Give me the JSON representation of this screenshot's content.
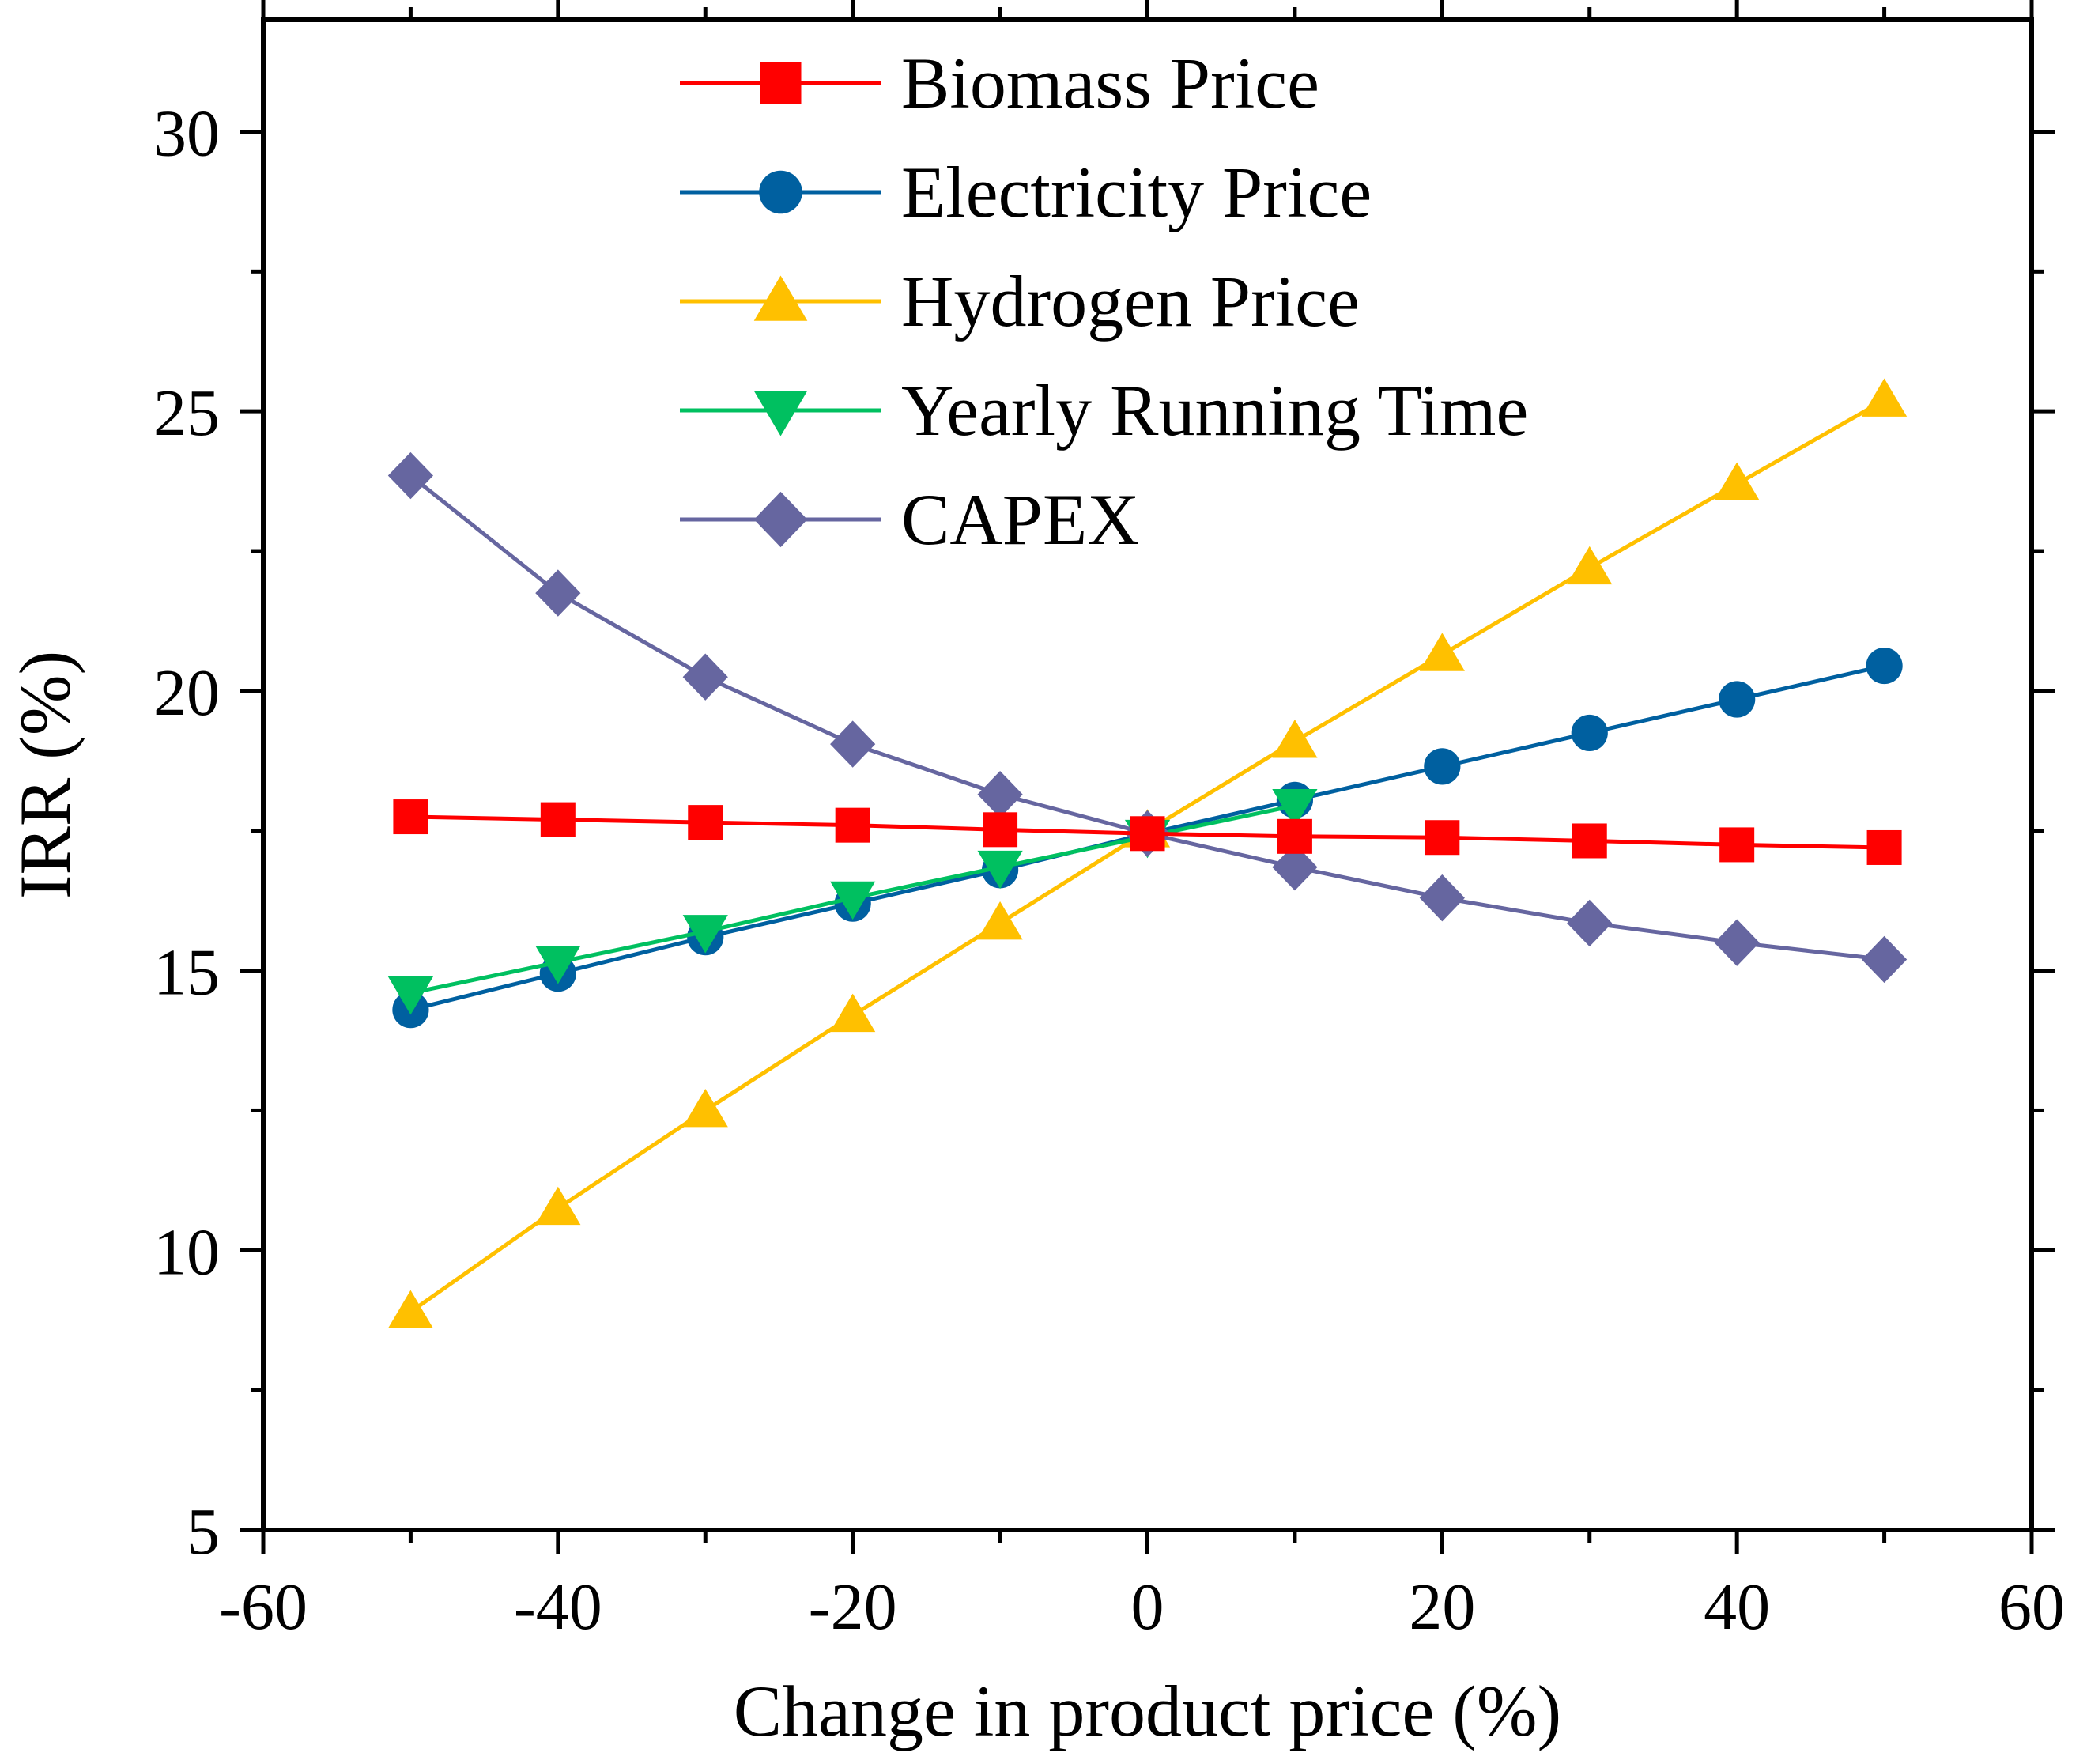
{
  "chart_data": {
    "type": "line",
    "title": "",
    "xlabel": "Change in product price (%)",
    "ylabel": "IRR (%)",
    "xlim": [
      -60,
      60
    ],
    "ylim": [
      5,
      32
    ],
    "xticks": [
      -60,
      -40,
      -20,
      0,
      20,
      40,
      60
    ],
    "yticks": [
      5,
      10,
      15,
      20,
      25,
      30
    ],
    "x_tick_labels": [
      "-60",
      "-40",
      "-20",
      "0",
      "20",
      "40",
      "60"
    ],
    "y_tick_labels": [
      "5",
      "10",
      "15",
      "20",
      "25",
      "30"
    ],
    "legend_position": "top-center",
    "grid": false,
    "series": [
      {
        "name": "Biomass Price",
        "color": "#ff0000",
        "marker": "square",
        "x": [
          -50,
          -40,
          -30,
          -20,
          -10,
          0,
          10,
          20,
          30,
          40,
          50
        ],
        "values": [
          17.75,
          17.7,
          17.65,
          17.6,
          17.52,
          17.45,
          17.4,
          17.38,
          17.32,
          17.25,
          17.2
        ]
      },
      {
        "name": "Electricity Price",
        "color": "#0060a0",
        "marker": "circle",
        "x": [
          -50,
          -40,
          -30,
          -20,
          -10,
          0,
          10,
          20,
          30,
          40,
          50
        ],
        "values": [
          14.3,
          14.95,
          15.6,
          16.2,
          16.8,
          17.45,
          18.05,
          18.65,
          19.25,
          19.85,
          20.45
        ]
      },
      {
        "name": "Hydrogen Price",
        "color": "#ffc000",
        "marker": "triangle-up",
        "x": [
          -50,
          -40,
          -30,
          -20,
          -10,
          0,
          10,
          20,
          30,
          40,
          50
        ],
        "values": [
          8.9,
          10.75,
          12.5,
          14.2,
          15.85,
          17.5,
          19.1,
          20.65,
          22.2,
          23.7,
          25.2
        ]
      },
      {
        "name": "Yearly Running Time",
        "color": "#00c060",
        "marker": "triangle-down",
        "x": [
          -50,
          -40,
          -30,
          -20,
          -10,
          0,
          10
        ],
        "values": [
          14.6,
          15.15,
          15.7,
          16.3,
          16.85,
          17.4,
          17.95
        ]
      },
      {
        "name": "CAPEX",
        "color": "#6666a0",
        "marker": "diamond",
        "x": [
          -50,
          -40,
          -30,
          -20,
          -10,
          0,
          10,
          20,
          30,
          40,
          50
        ],
        "values": [
          23.85,
          21.75,
          20.25,
          19.05,
          18.15,
          17.45,
          16.85,
          16.3,
          15.85,
          15.5,
          15.2
        ]
      }
    ]
  }
}
